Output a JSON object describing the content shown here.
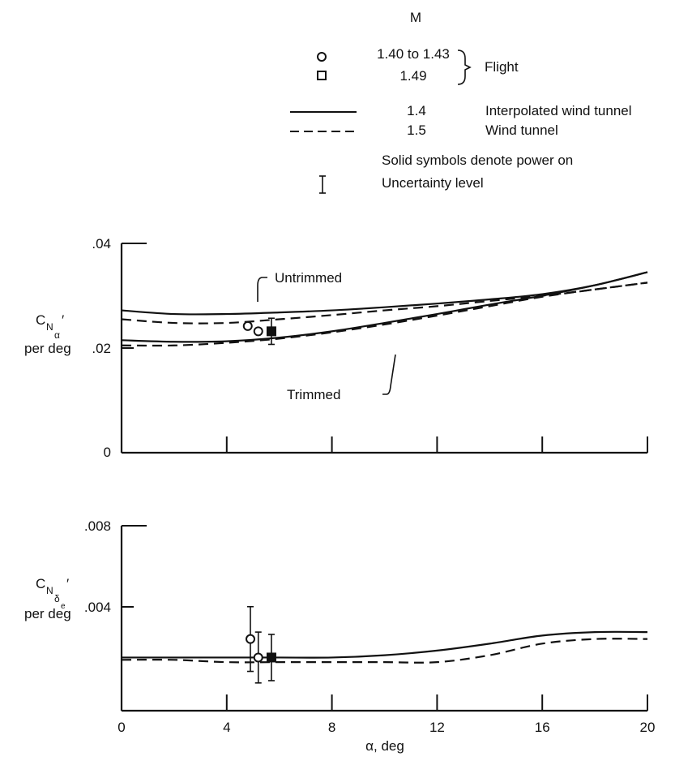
{
  "legend": {
    "mach_header": "M",
    "flight_group_label": "Flight",
    "entries": [
      {
        "symbol": "circle",
        "mach": "1.40 to 1.43"
      },
      {
        "symbol": "square",
        "mach": "1.49"
      }
    ],
    "lines": [
      {
        "style": "solid",
        "mach": "1.4",
        "label": "Interpolated wind tunnel"
      },
      {
        "style": "dashed",
        "mach": "1.5",
        "label": "Wind tunnel"
      }
    ],
    "notes": {
      "solid_symbols": "Solid symbols denote power on",
      "uncertainty": "Uncertainty level"
    }
  },
  "xaxis": {
    "label": "α, deg",
    "ticks": [
      "0",
      "4",
      "8",
      "12",
      "16",
      "20"
    ]
  },
  "top_panel": {
    "ylabel_main": "C",
    "ylabel_sub": "N",
    "ylabel_subsub": "α",
    "ylabel_prime": "′",
    "ylabel_unit": "per deg",
    "yticks": [
      ".04",
      ".02",
      "0"
    ],
    "annotations": {
      "untrimmed": "Untrimmed",
      "trimmed": "Trimmed"
    }
  },
  "bottom_panel": {
    "ylabel_main": "C",
    "ylabel_sub": "N",
    "ylabel_subsub": "δ",
    "ylabel_subsubsub": "e",
    "ylabel_prime": "′",
    "ylabel_unit": "per deg",
    "yticks": [
      ".008",
      ".004"
    ]
  },
  "chart_data": [
    {
      "type": "line",
      "x_range": [
        0,
        20
      ],
      "ylim": [
        0,
        0.04
      ],
      "series": [
        {
          "name": "1.4",
          "style": "solid",
          "label": "Untrimmed",
          "x": [
            0,
            2,
            4,
            6,
            8,
            10,
            12,
            14,
            16,
            18,
            20
          ],
          "y": [
            0.0272,
            0.0265,
            0.0265,
            0.0268,
            0.0272,
            0.0278,
            0.0285,
            0.0293,
            0.0303,
            0.032,
            0.0345
          ]
        },
        {
          "name": "1.4",
          "style": "solid",
          "label": "Trimmed",
          "x": [
            0,
            2,
            4,
            6,
            8,
            10,
            12,
            14,
            16,
            18,
            20
          ],
          "y": [
            0.0215,
            0.0212,
            0.0213,
            0.022,
            0.0232,
            0.0248,
            0.0265,
            0.0283,
            0.03,
            0.032,
            0.0345
          ]
        },
        {
          "name": "1.5",
          "style": "dashed",
          "label": "Untrimmed",
          "x": [
            0,
            2,
            4,
            6,
            8,
            10,
            12,
            14,
            16,
            18,
            20
          ],
          "y": [
            0.0255,
            0.0248,
            0.0248,
            0.0255,
            0.0263,
            0.0272,
            0.028,
            0.029,
            0.03,
            0.0312,
            0.0325
          ]
        },
        {
          "name": "1.5",
          "style": "dashed",
          "label": "Trimmed",
          "x": [
            0,
            2,
            4,
            6,
            8,
            10,
            12,
            14,
            16,
            18,
            20
          ],
          "y": [
            0.0205,
            0.0205,
            0.021,
            0.0218,
            0.023,
            0.0245,
            0.0262,
            0.028,
            0.0298,
            0.0312,
            0.0325
          ]
        }
      ],
      "points": [
        {
          "symbol": "circle",
          "filled": false,
          "x": 4.8,
          "y": 0.0242
        },
        {
          "symbol": "circle",
          "filled": false,
          "x": 5.2,
          "y": 0.0232
        },
        {
          "symbol": "square",
          "filled": true,
          "x": 5.7,
          "y": 0.0232,
          "err": 0.0025
        }
      ]
    },
    {
      "type": "line",
      "x_range": [
        0,
        20
      ],
      "ylim": [
        0,
        0.008
      ],
      "series": [
        {
          "name": "1.4",
          "style": "solid",
          "x": [
            0,
            2,
            4,
            6,
            8,
            10,
            12,
            14,
            16,
            18,
            20
          ],
          "y": [
            0.0023,
            0.0023,
            0.0023,
            0.0023,
            0.0023,
            0.0024,
            0.0026,
            0.0029,
            0.00325,
            0.0034,
            0.0034
          ]
        },
        {
          "name": "1.5",
          "style": "dashed",
          "x": [
            0,
            2,
            4,
            6,
            8,
            10,
            12,
            14,
            16,
            18,
            20
          ],
          "y": [
            0.0022,
            0.0022,
            0.0021,
            0.0021,
            0.0021,
            0.0021,
            0.0021,
            0.0024,
            0.0029,
            0.0031,
            0.0031
          ]
        }
      ],
      "points": [
        {
          "symbol": "circle",
          "filled": false,
          "x": 4.9,
          "y": 0.0031,
          "err": 0.0014
        },
        {
          "symbol": "circle",
          "filled": false,
          "x": 5.2,
          "y": 0.0023,
          "err": 0.0011
        },
        {
          "symbol": "square",
          "filled": true,
          "x": 5.7,
          "y": 0.0023,
          "err": 0.001
        }
      ]
    }
  ]
}
